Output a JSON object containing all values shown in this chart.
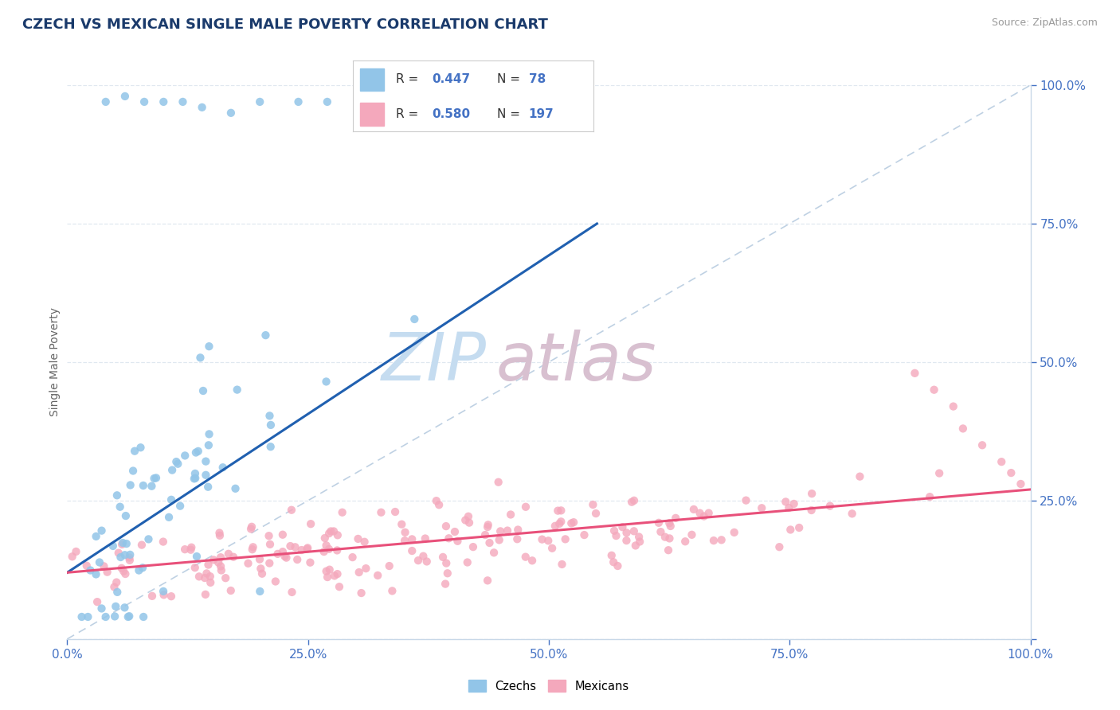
{
  "title": "CZECH VS MEXICAN SINGLE MALE POVERTY CORRELATION CHART",
  "source": "Source: ZipAtlas.com",
  "ylabel": "Single Male Poverty",
  "r_czech": 0.447,
  "n_czech": 78,
  "r_mexican": 0.58,
  "n_mexican": 197,
  "color_czech": "#92C5E8",
  "color_mexican": "#F4A8BC",
  "color_czech_line": "#2060B0",
  "color_mexican_line": "#E8507A",
  "color_diag": "#B8CCE0",
  "title_color": "#1A3A6B",
  "axis_label_color": "#4472C4",
  "tick_color": "#4472C4",
  "background_color": "#FFFFFF",
  "grid_color": "#E0E8F0",
  "spine_color": "#C8D8E8"
}
